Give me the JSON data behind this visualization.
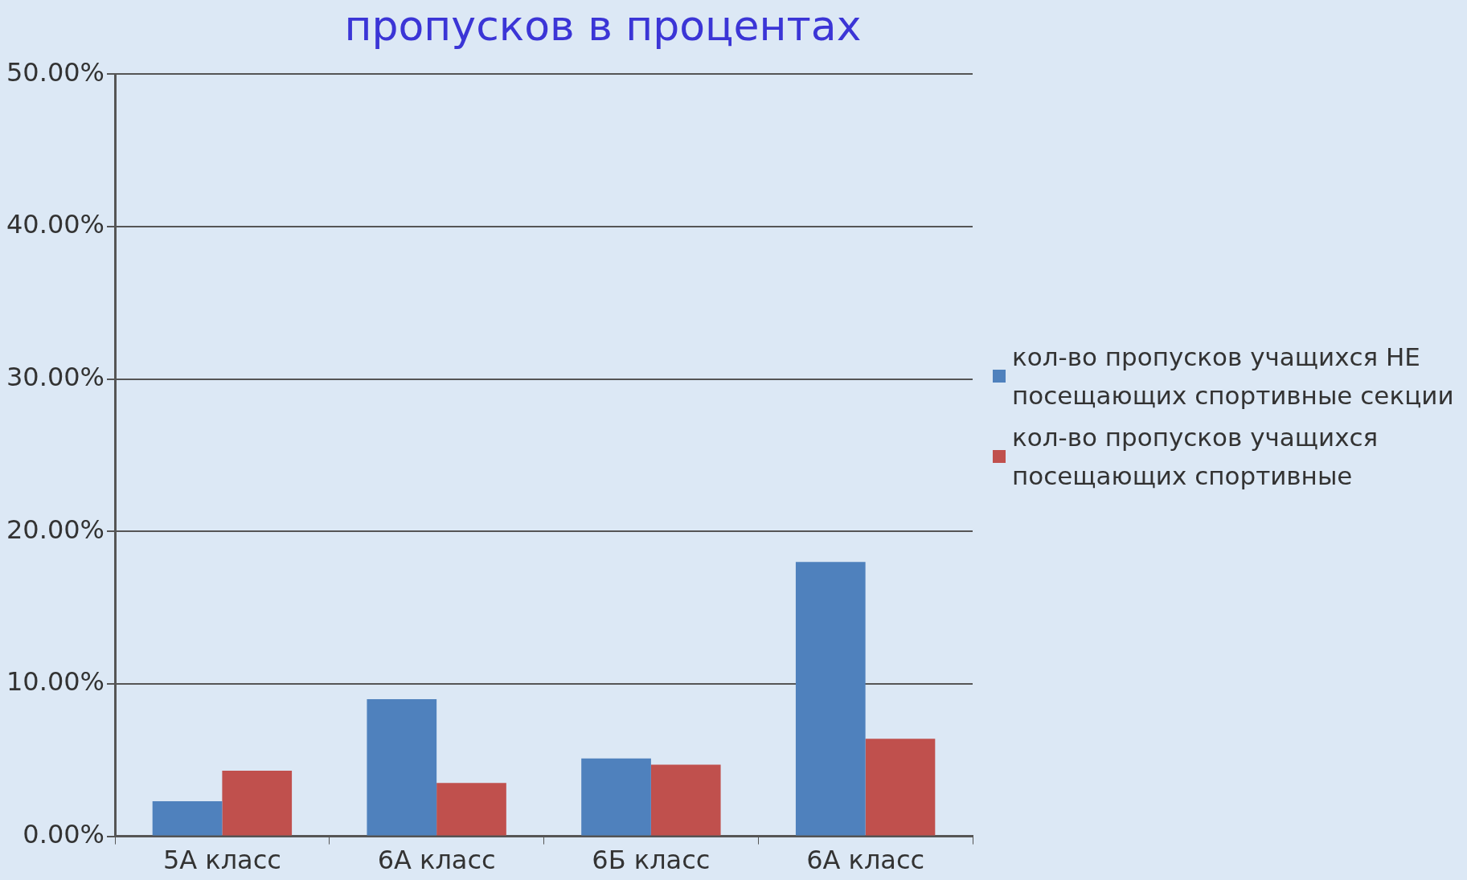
{
  "chart_data": {
    "type": "bar",
    "title": "пропусков в процентах",
    "categories": [
      "5А класс",
      "6А класс",
      "6Б класс",
      "6А класс"
    ],
    "series": [
      {
        "name": "кол-во пропусков учащихся НЕ посещающих спортивные секции",
        "color": "#4f81bd",
        "values": [
          2.3,
          9.0,
          5.1,
          18.0
        ]
      },
      {
        "name": "кол-во пропусков учащихся посещающих спортивные",
        "color": "#c0504d",
        "values": [
          4.3,
          3.5,
          4.7,
          6.4
        ]
      }
    ],
    "ylim": [
      0,
      50
    ],
    "yticks": [
      {
        "value": 0,
        "label": "0.00%"
      },
      {
        "value": 10,
        "label": "10.00%"
      },
      {
        "value": 20,
        "label": "20.00%"
      },
      {
        "value": 30,
        "label": "30.00%"
      },
      {
        "value": 40,
        "label": "40.00%"
      },
      {
        "value": 50,
        "label": "50.00%"
      }
    ],
    "grid": "y",
    "legend": "right"
  }
}
